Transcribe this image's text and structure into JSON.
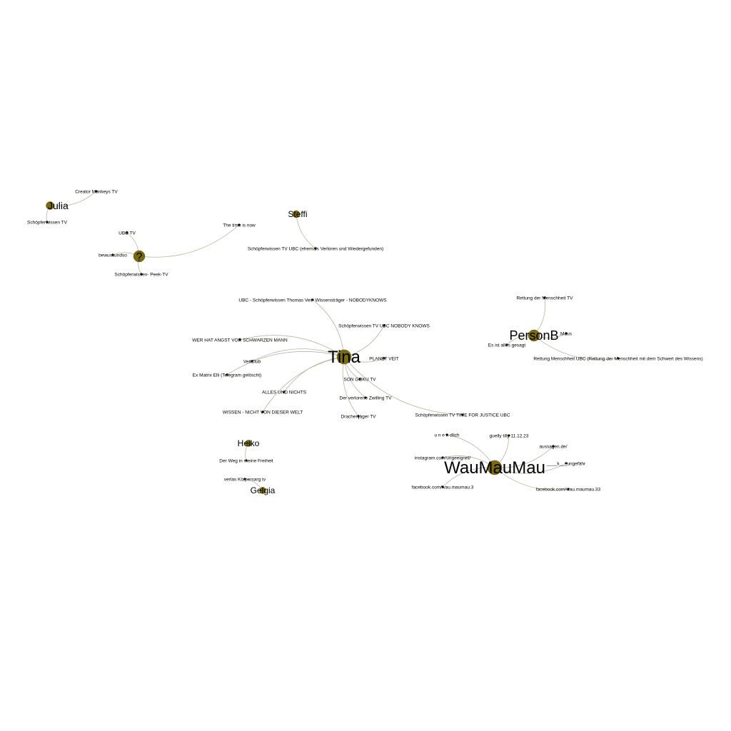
{
  "graph": {
    "colors": {
      "hub": "#7a6a12",
      "edge": "#b9b4a2",
      "leaf": "#111111",
      "background": "#ffffff"
    },
    "nodes": [
      {
        "id": "julia",
        "label": "Julia",
        "kind": "hub"
      },
      {
        "id": "creator-monkeys",
        "label": "Creator Monkeys TV",
        "kind": "leaf"
      },
      {
        "id": "schoepferwissen-tv-a",
        "label": "Schöpferwissen TV",
        "kind": "leaf"
      },
      {
        "id": "steffi",
        "label": "Steffi",
        "kind": "hub"
      },
      {
        "id": "schoepferwissen-ubc-ehemals",
        "label": "Schöpferwissen TV UBC (ehemals Verloren und Wiedergefunden)",
        "kind": "leaf"
      },
      {
        "id": "question",
        "label": "?",
        "kind": "hub"
      },
      {
        "id": "ubc-tv",
        "label": "UBC TV",
        "kind": "leaf"
      },
      {
        "id": "the-time-is-now",
        "label": "The time is now",
        "kind": "leaf"
      },
      {
        "id": "bewussundso",
        "label": "bewussundso",
        "kind": "leaf"
      },
      {
        "id": "peek-tv",
        "label": "Schöpferwissen- Peek-TV",
        "kind": "leaf"
      },
      {
        "id": "tina",
        "label": "Tina",
        "kind": "hub"
      },
      {
        "id": "ubc-thomas-veit",
        "label": "UBC - Schöpferwissen Thomas Veit- Wissensträger - NOBODYKNOWS",
        "kind": "leaf"
      },
      {
        "id": "ubc-nobody-knows",
        "label": "Schöpferwissen TV UBC NOBODY KNOWS",
        "kind": "leaf"
      },
      {
        "id": "wer-hat-angst",
        "label": "WER HAT ANGST VOR SCHWARZEN MANN",
        "kind": "leaf"
      },
      {
        "id": "planet-veit",
        "label": "PLANET VEIT",
        "kind": "leaf"
      },
      {
        "id": "veitclub",
        "label": "VeitClub",
        "kind": "leaf"
      },
      {
        "id": "exmatrix",
        "label": "Ex Matrix Elli (Telegram gelöscht)",
        "kind": "leaf"
      },
      {
        "id": "songoku",
        "label": "SON GOKU TV",
        "kind": "leaf"
      },
      {
        "id": "alles-und-nichts",
        "label": "ALLES UND NICHTS",
        "kind": "leaf"
      },
      {
        "id": "der-verlorene-zwilling",
        "label": "Der verlorene Zwilling TV",
        "kind": "leaf"
      },
      {
        "id": "wissen-nicht",
        "label": "WISSEN - NICHT VON DIESER WELT",
        "kind": "leaf"
      },
      {
        "id": "drachenjaeger",
        "label": "Drachenjäger TV",
        "kind": "leaf"
      },
      {
        "id": "time-for-justice",
        "label": "Schöpferwissen TV TIME FOR JUSTICE UBC",
        "kind": "leaf"
      },
      {
        "id": "personb",
        "label": "PersonB",
        "kind": "hub"
      },
      {
        "id": "rettung-tv",
        "label": "Rettung der Menschheit TV",
        "kind": "leaf"
      },
      {
        "id": "maus",
        "label": "Maus",
        "kind": "leaf"
      },
      {
        "id": "es-ist-alles-gesagt",
        "label": "Es ist alles gesagt",
        "kind": "leaf"
      },
      {
        "id": "rettung-ubc",
        "label": "Rettung Menschheit UBC (Rettung der Menschheit mit dem Schwert des Wissens)",
        "kind": "leaf"
      },
      {
        "id": "heiko",
        "label": "Heiko",
        "kind": "hub"
      },
      {
        "id": "der-weg",
        "label": "Der Weg in meine Freiheit",
        "kind": "leaf"
      },
      {
        "id": "verlassen",
        "label": "verlas Körpersarg tv",
        "kind": "leaf"
      },
      {
        "id": "gelgia",
        "label": "Gelgia",
        "kind": "hub"
      },
      {
        "id": "waumaumau",
        "label": "WauMauMau",
        "kind": "hub"
      },
      {
        "id": "unendlich",
        "label": "u n e n dlich",
        "kind": "leaf"
      },
      {
        "id": "guelly",
        "label": "guelly tilly 11.12.23",
        "kind": "leaf"
      },
      {
        "id": "aussagen",
        "label": "aussagen.de/",
        "kind": "leaf"
      },
      {
        "id": "instagram",
        "label": "instagram.com/ungeeignet/",
        "kind": "leaf"
      },
      {
        "id": "k-ungefahr",
        "label": "____k___ungefähr",
        "kind": "leaf"
      },
      {
        "id": "facebook-3",
        "label": "facebook.com/wau.maumau.3",
        "kind": "leaf"
      },
      {
        "id": "facebook-33",
        "label": "facebook.com/wau.maumau.33",
        "kind": "leaf"
      }
    ],
    "edges": [
      [
        "julia",
        "creator-monkeys"
      ],
      [
        "julia",
        "schoepferwissen-tv-a"
      ],
      [
        "steffi",
        "schoepferwissen-ubc-ehemals"
      ],
      [
        "question",
        "ubc-tv"
      ],
      [
        "question",
        "the-time-is-now"
      ],
      [
        "question",
        "bewussundso"
      ],
      [
        "question",
        "peek-tv"
      ],
      [
        "tina",
        "ubc-thomas-veit"
      ],
      [
        "tina",
        "ubc-nobody-knows"
      ],
      [
        "tina",
        "wer-hat-angst"
      ],
      [
        "tina",
        "planet-veit"
      ],
      [
        "tina",
        "veitclub"
      ],
      [
        "tina",
        "exmatrix"
      ],
      [
        "tina",
        "songoku"
      ],
      [
        "tina",
        "alles-und-nichts"
      ],
      [
        "tina",
        "der-verlorene-zwilling"
      ],
      [
        "tina",
        "wissen-nicht"
      ],
      [
        "tina",
        "drachenjaeger"
      ],
      [
        "tina",
        "time-for-justice"
      ],
      [
        "personb",
        "rettung-tv"
      ],
      [
        "personb",
        "maus"
      ],
      [
        "personb",
        "es-ist-alles-gesagt"
      ],
      [
        "personb",
        "rettung-ubc"
      ],
      [
        "heiko",
        "der-weg"
      ],
      [
        "gelgia",
        "verlassen"
      ],
      [
        "waumaumau",
        "unendlich"
      ],
      [
        "waumaumau",
        "guelly"
      ],
      [
        "waumaumau",
        "aussagen"
      ],
      [
        "waumaumau",
        "instagram"
      ],
      [
        "waumaumau",
        "k-ungefahr"
      ],
      [
        "waumaumau",
        "facebook-3"
      ],
      [
        "waumaumau",
        "facebook-33"
      ]
    ]
  }
}
